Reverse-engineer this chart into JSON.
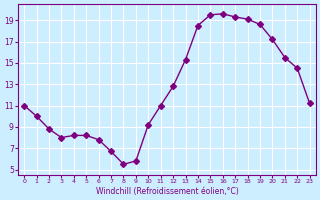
{
  "x": [
    0,
    1,
    2,
    3,
    4,
    5,
    6,
    7,
    8,
    9,
    10,
    11,
    12,
    13,
    14,
    15,
    16,
    17,
    18,
    19,
    20,
    21,
    22,
    23
  ],
  "y": [
    11.0,
    10.0,
    8.8,
    8.0,
    8.2,
    8.2,
    7.8,
    6.7,
    5.5,
    5.8,
    9.2,
    11.0,
    12.8,
    15.3,
    18.5,
    19.5,
    19.6,
    19.3,
    19.1,
    18.6,
    17.2,
    15.5,
    14.5,
    11.2
  ],
  "line_color": "#7f007f",
  "marker": "D",
  "marker_size": 3,
  "bg_color": "#cceeff",
  "grid_color": "#ffffff",
  "xlabel": "Windchill (Refroidissement éolien,°C)",
  "xlabel_color": "#7f007f",
  "tick_color": "#7f007f",
  "yticks": [
    5,
    7,
    9,
    11,
    13,
    15,
    17,
    19
  ],
  "xticks": [
    0,
    1,
    2,
    3,
    4,
    5,
    6,
    7,
    8,
    9,
    10,
    11,
    12,
    13,
    14,
    15,
    16,
    17,
    18,
    19,
    20,
    21,
    22,
    23
  ],
  "ylim": [
    4.5,
    20.5
  ],
  "xlim": [
    -0.5,
    23.5
  ]
}
